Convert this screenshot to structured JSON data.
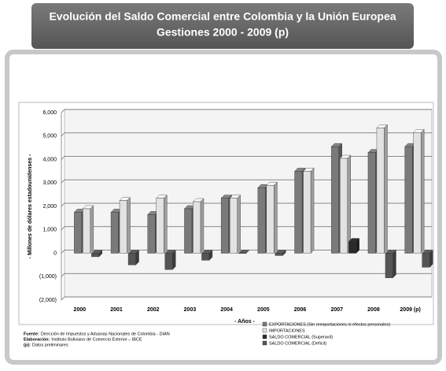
{
  "chart_data": {
    "type": "bar",
    "title": "Evolución del Saldo Comercial entre Colombia y la Unión Europea",
    "subtitle": "Gestiones 2000 - 2009 (p)",
    "y_label": "- Millones de dólares estadounidenses -",
    "x_label": "- Años -",
    "categories": [
      "2000",
      "2001",
      "2002",
      "2003",
      "2004",
      "2005",
      "2006",
      "2007",
      "2008",
      "2009 (p)"
    ],
    "series": [
      {
        "name": "EXPORTACIONES (Sin reexportaciones ni efectos personales)",
        "color": "#7a7a7a",
        "values": [
          1750,
          1750,
          1650,
          1900,
          2350,
          2800,
          3500,
          4550,
          4300,
          4550
        ]
      },
      {
        "name": "IMPORTACIONES",
        "color": "#e2e2e2",
        "values": [
          1900,
          2250,
          2350,
          2200,
          2350,
          2900,
          3500,
          4050,
          5350,
          5150
        ]
      },
      {
        "name": "SALDO COMERCIAL (Superavit)",
        "color": "#2a2a2a",
        "values": [
          null,
          null,
          null,
          null,
          null,
          null,
          null,
          500,
          null,
          null
        ]
      },
      {
        "name": "SALDO COMERCIAL (Deficit)",
        "color": "#555555",
        "values": [
          -150,
          -500,
          -700,
          -300,
          -10,
          -100,
          null,
          null,
          -1050,
          -600
        ]
      }
    ],
    "ylim": [
      -2000,
      6000
    ],
    "yticks": [
      {
        "value": -2000,
        "label": "(2,000)"
      },
      {
        "value": -1000,
        "label": "(1,000)"
      },
      0,
      {
        "value": 1000,
        "label": "1,000"
      },
      {
        "value": 2000,
        "label": "2,000"
      },
      {
        "value": 3000,
        "label": "3,000"
      },
      {
        "value": 4000,
        "label": "4,000"
      },
      {
        "value": 5000,
        "label": "5,000"
      },
      {
        "value": 6000,
        "label": "6,000"
      }
    ],
    "grid": true,
    "legend": "bottom-right",
    "notes": [
      {
        "label": "Fuente:",
        "text": "Dirección de Impuestos y Aduanas Nacionales de Colombia - DIAN"
      },
      {
        "label": "Elaboración:",
        "text": "Instituto Boliviano de Comercio Exterior – IBCE"
      },
      {
        "label": "(p):",
        "text": "Datos preliminares"
      }
    ]
  }
}
